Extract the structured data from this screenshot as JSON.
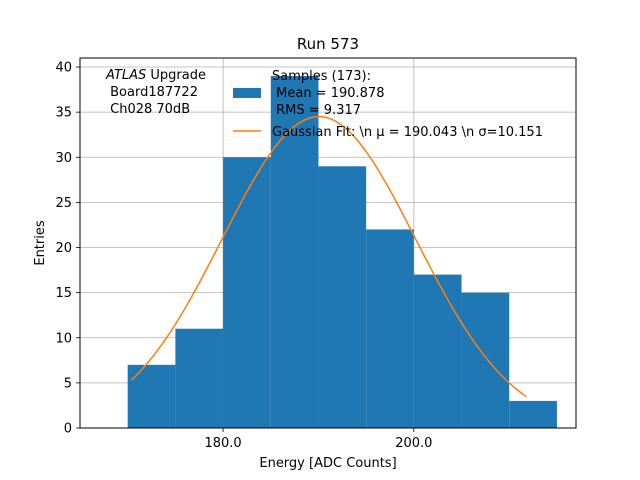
{
  "chart_data": {
    "type": "bar",
    "title": "Run 573",
    "xlabel": "Energy [ADC Counts]",
    "ylabel": "Entries",
    "xlim": [
      165,
      217
    ],
    "ylim": [
      0,
      41
    ],
    "grid": true,
    "x_ticks": [
      180,
      200
    ],
    "x_tick_labels": [
      "180.0",
      "200.0"
    ],
    "y_ticks": [
      0,
      5,
      10,
      15,
      20,
      25,
      30,
      35,
      40
    ],
    "y_tick_labels": [
      "0",
      "5",
      "10",
      "15",
      "20",
      "25",
      "30",
      "35",
      "40"
    ],
    "histogram": {
      "bin_edges": [
        170,
        175,
        180,
        185,
        190,
        195,
        200,
        205,
        210,
        215
      ],
      "counts": [
        7,
        11,
        30,
        39,
        29,
        22,
        17,
        15,
        3
      ],
      "color": "#1f77b4"
    },
    "gaussian_fit": {
      "mu": 190.043,
      "sigma": 10.151,
      "amplitude": 34.5,
      "x_range": [
        170.4,
        211.8
      ],
      "color": "#ff7f0e"
    },
    "annotation": {
      "line1_italic": "ATLAS",
      "line1_rest": " Upgrade",
      "line2": " Board187722",
      "line3": " Ch028 70dB"
    },
    "legend": {
      "placement": "top-right",
      "hist_label_line1": "Samples (173):",
      "hist_label_line2": " Mean = 190.878",
      "hist_label_line3": " RMS = 9.317",
      "fit_label": "Gaussian Fit: \\n μ = 190.043 \\n σ=10.151"
    }
  }
}
